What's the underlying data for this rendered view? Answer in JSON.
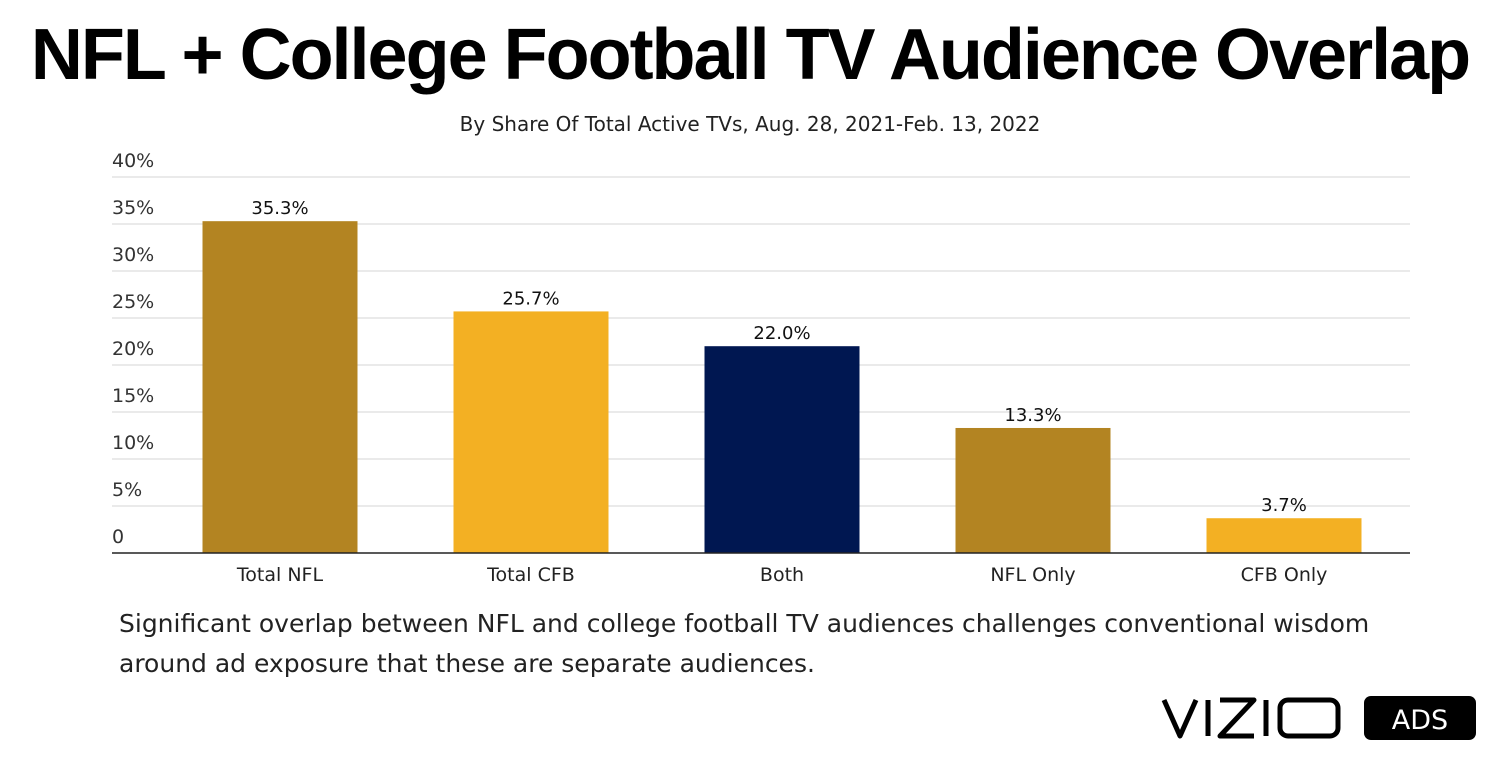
{
  "chart_data": {
    "type": "bar",
    "title": "NFL + College Football TV Audience Overlap",
    "subtitle": "By Share Of Total Active TVs, Aug. 28, 2021-Feb. 13, 2022",
    "categories": [
      "Total NFL",
      "Total CFB",
      "Both",
      "NFL Only",
      "CFB Only"
    ],
    "values": [
      35.3,
      25.7,
      22.0,
      13.3,
      3.7
    ],
    "data_labels": [
      "35.3%",
      "25.7%",
      "22.0%",
      "13.3%",
      "3.7%"
    ],
    "colors": [
      "#b38422",
      "#f3b023",
      "#001751",
      "#b38422",
      "#f3b023"
    ],
    "ylim": [
      0,
      40
    ],
    "yticks": [
      0,
      5,
      10,
      15,
      20,
      25,
      30,
      35,
      40
    ],
    "ytick_labels": [
      "0",
      "5%",
      "10%",
      "15%",
      "20%",
      "25%",
      "30%",
      "35%",
      "40%"
    ],
    "xlabel": "",
    "ylabel": "",
    "grid": true
  },
  "caption": "Significant overlap between NFL and college football TV audiences challenges conventional wisdom around ad exposure that these are separate audiences.",
  "logo": {
    "brand": "VIZIO",
    "badge": "ADS"
  }
}
